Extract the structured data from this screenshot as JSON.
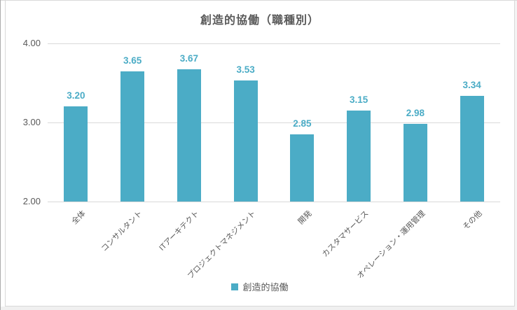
{
  "colors": {
    "accent_teal": "#4BACC6",
    "text_gray": "#595959",
    "gridline_gray": "#D9D9D9",
    "chart_border": "#D9D9D9"
  },
  "chart_data": {
    "type": "bar",
    "title": "創造的協働（職種別）",
    "categories": [
      "全体",
      "コンサルタント",
      "ITアーキテクト",
      "プロジェクトマネジメント",
      "開発",
      "カスタマサービス",
      "オペレーション・運用管理",
      "その他"
    ],
    "values": [
      3.2,
      3.65,
      3.67,
      3.53,
      2.85,
      3.15,
      2.98,
      3.34
    ],
    "data_labels": [
      "3.20",
      "3.65",
      "3.67",
      "3.53",
      "2.85",
      "3.15",
      "2.98",
      "3.34"
    ],
    "series_name": "創造的協働",
    "xlabel": "",
    "ylabel": "",
    "ylim": [
      2.0,
      4.0
    ],
    "yticks": [
      {
        "label": "4.00",
        "value": 4.0
      },
      {
        "label": "3.00",
        "value": 3.0
      },
      {
        "label": "2.00",
        "value": 2.0
      }
    ],
    "grid": true,
    "bar_color": "#4BACC6",
    "data_label_color": "#4BACC6",
    "legend_label": "創造的協働",
    "legend_position": "bottom"
  }
}
